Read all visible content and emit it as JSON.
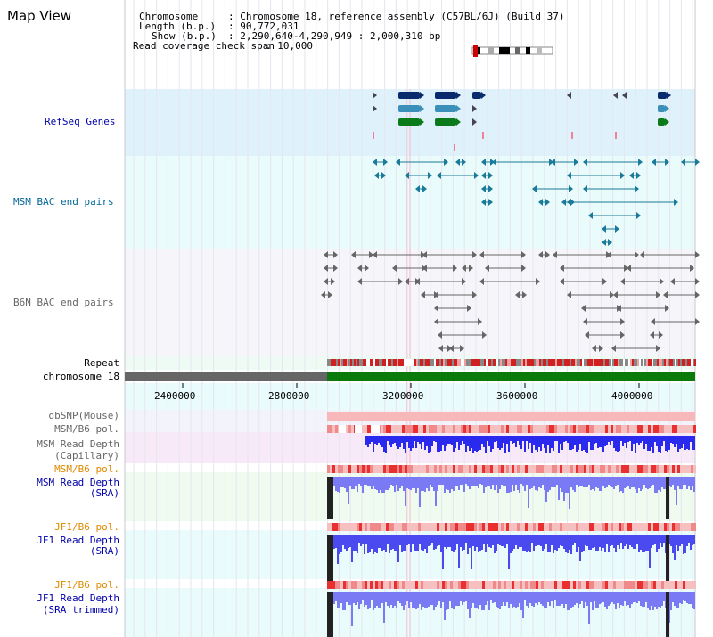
{
  "page": {
    "title": "Map View"
  },
  "info": {
    "chromosome_label": "Chromosome",
    "chromosome_value": ": Chromosome 18, reference assembly (C57BL/6J) (Build 37)",
    "length_label": "Length (b.p.)",
    "length_value": ": 90,772,031",
    "show_label": "Show (b.p.)",
    "show_value": ": 2,290,640-4,290,949 : 2,000,310 bp",
    "coverage_label": "Read coverage check span",
    "coverage_value": ": 10,000"
  },
  "tracks": {
    "refseq": "RefSeq Genes",
    "msm_bac": "MSM BAC end pairs",
    "b6n_bac": "B6N BAC end pairs",
    "repeat": "Repeat",
    "chromosome": "chromosome 18",
    "dbsnp": "dbSNP(Mouse)",
    "msm_b6_pol": "MSM/B6 pol.",
    "msm_depth_cap_1": "MSM Read Depth",
    "msm_depth_cap_2": "(Capillary)",
    "msm_b6_pol_2": "MSM/B6 pol.",
    "msm_depth_sra_1": "MSM Read Depth",
    "msm_depth_sra_2": "(SRA)",
    "jf1_b6_pol": "JF1/B6 pol.",
    "jf1_depth_sra_1": "JF1 Read Depth",
    "jf1_depth_sra_2": "(SRA)",
    "jf1_b6_pol_2": "JF1/B6 pol.",
    "jf1_depth_trim_1": "JF1 Read Depth",
    "jf1_depth_trim_2": "(SRA trimmed)"
  },
  "axis": {
    "ticks": [
      "2400000",
      "2800000",
      "3200000",
      "3600000",
      "4000000"
    ]
  },
  "colors": {
    "refseq_bg": "#dff2fb",
    "msm_bac_bg": "#e9fbfb",
    "b6n_bac_bg": "#f5f5fa",
    "gene_dark": "#0a2a6e",
    "gene_mid": "#3a90b8",
    "gene_green": "#0a7a1a",
    "bac_teal": "#1a7a99",
    "bac_grey": "#666666",
    "chromosome_green": "#0a7a0a",
    "chromosome_grey": "#666666",
    "depth_blue": "#2a2aee",
    "pol_red": "#e02020"
  }
}
